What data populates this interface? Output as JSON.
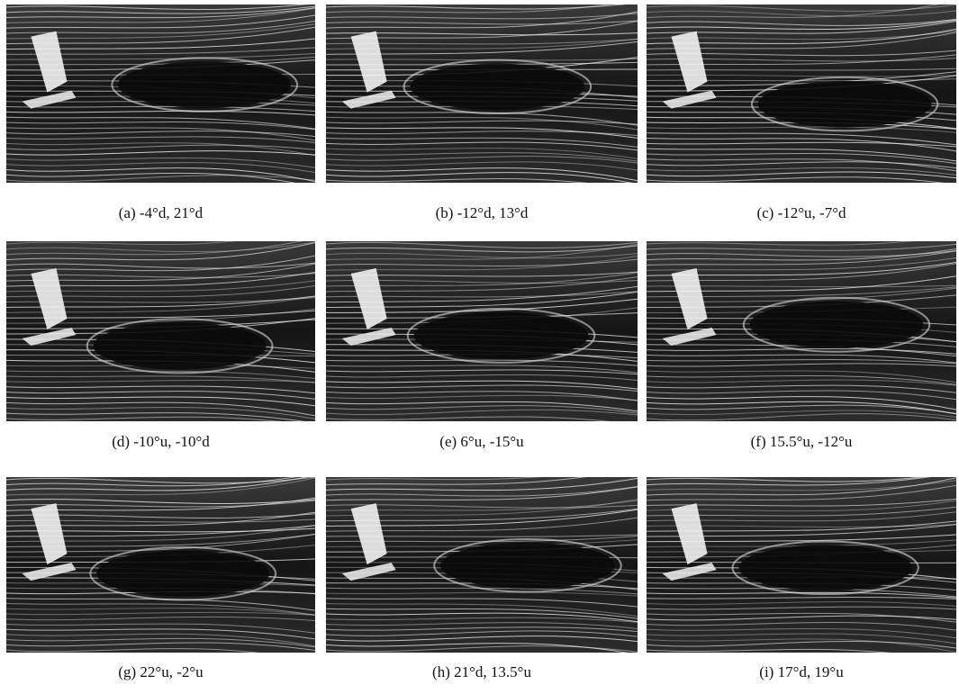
{
  "figure": {
    "panels": [
      {
        "caption": "(a) -4°d, 21°d"
      },
      {
        "caption": "(b) -12°d, 13°d"
      },
      {
        "caption": "(c) -12°u, -7°d"
      },
      {
        "caption": "(d) -10°u, -10°d"
      },
      {
        "caption": "(e) 6°u, -15°u"
      },
      {
        "caption": "(f) 15.5°u, -12°u"
      },
      {
        "caption": "(g) 22°u, -2°u"
      },
      {
        "caption": "(h) 21°d, 13.5°u"
      },
      {
        "caption": "(i) 17°d, 19°u"
      }
    ]
  }
}
